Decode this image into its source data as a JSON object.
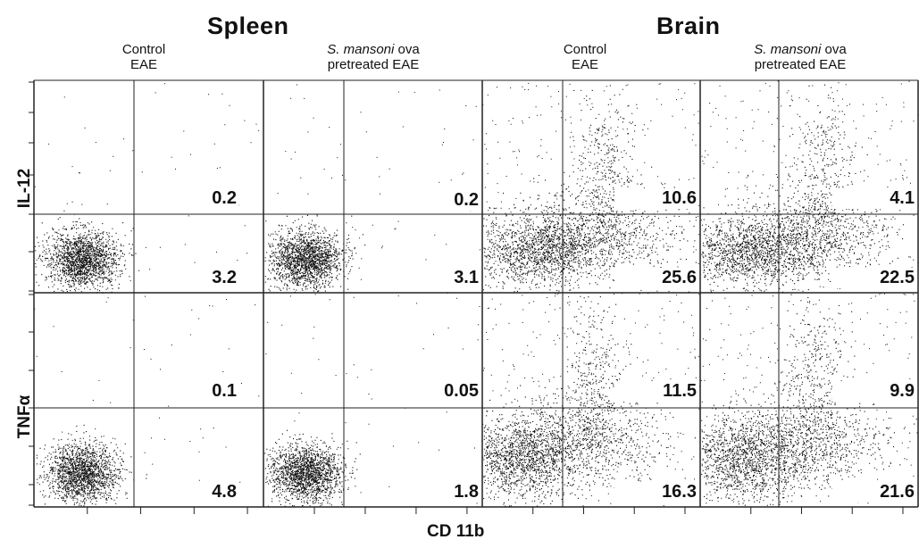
{
  "tissues": [
    {
      "name": "Spleen"
    },
    {
      "name": "Brain"
    }
  ],
  "conditions": [
    {
      "line1": "Control",
      "line2": "EAE"
    },
    {
      "line1_italic": "S. mansoni",
      "line1_rest": " ova",
      "line2": "pretreated EAE"
    },
    {
      "line1": "Control",
      "line2": "EAE"
    },
    {
      "line1_italic": "S. mansoni",
      "line1_rest": " ova",
      "line2": "pretreated EAE"
    }
  ],
  "row_labels": [
    "IL-12",
    "TNFα"
  ],
  "x_axis_label": "CD 11b",
  "panels": [
    {
      "upper": "0.2",
      "lower": "3.2"
    },
    {
      "upper": "0.2",
      "lower": "3.1"
    },
    {
      "upper": "10.6",
      "lower": "25.6"
    },
    {
      "upper": "4.1",
      "lower": "22.5"
    },
    {
      "upper": "0.1",
      "lower": "4.8"
    },
    {
      "upper": "0.05",
      "lower": "1.8"
    },
    {
      "upper": "11.5",
      "lower": "16.3"
    },
    {
      "upper": "9.9",
      "lower": "21.6"
    }
  ]
}
